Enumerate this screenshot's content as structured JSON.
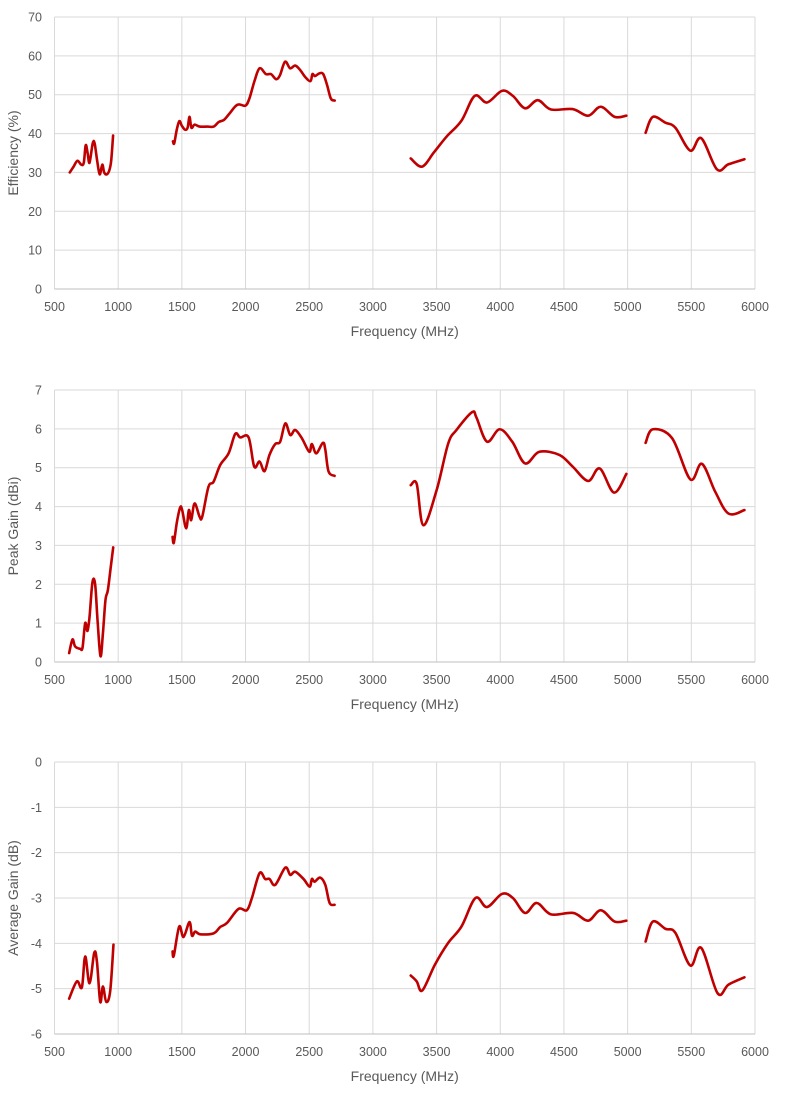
{
  "chart_data": [
    {
      "type": "line",
      "xlabel": "Frequency (MHz)",
      "ylabel": "Efficiency (%)",
      "xlim": [
        500,
        6000
      ],
      "ylim": [
        0,
        70
      ],
      "xticks": [
        500,
        1000,
        1500,
        2000,
        2500,
        3000,
        3500,
        4000,
        4500,
        5000,
        5500,
        6000
      ],
      "yticks": [
        0,
        10,
        20,
        30,
        40,
        50,
        60,
        70
      ],
      "grid": true,
      "color": "#c00000",
      "segments": [
        [
          [
            620,
            30
          ],
          [
            650,
            31.5
          ],
          [
            680,
            33
          ],
          [
            710,
            32
          ],
          [
            730,
            32.5
          ],
          [
            745,
            37
          ],
          [
            760,
            35
          ],
          [
            775,
            32.5
          ],
          [
            800,
            37.5
          ],
          [
            815,
            37.5
          ],
          [
            835,
            33
          ],
          [
            855,
            29.5
          ],
          [
            875,
            32
          ],
          [
            890,
            30
          ],
          [
            910,
            29.5
          ],
          [
            930,
            30.5
          ],
          [
            945,
            33
          ],
          [
            960,
            39.5
          ]
        ],
        [
          [
            1430,
            38
          ],
          [
            1440,
            37.5
          ],
          [
            1460,
            41
          ],
          [
            1480,
            43.2
          ],
          [
            1500,
            42
          ],
          [
            1525,
            41
          ],
          [
            1545,
            41.5
          ],
          [
            1560,
            44.3
          ],
          [
            1575,
            41.5
          ],
          [
            1600,
            42.3
          ],
          [
            1640,
            41.8
          ],
          [
            1700,
            41.8
          ],
          [
            1750,
            41.8
          ],
          [
            1790,
            43
          ],
          [
            1830,
            43.5
          ],
          [
            1870,
            45
          ],
          [
            1920,
            47
          ],
          [
            1950,
            47.5
          ],
          [
            2000,
            47.2
          ],
          [
            2030,
            49
          ],
          [
            2070,
            53.5
          ],
          [
            2110,
            56.8
          ],
          [
            2160,
            55.3
          ],
          [
            2200,
            55.3
          ],
          [
            2240,
            54
          ],
          [
            2270,
            55
          ],
          [
            2310,
            58.5
          ],
          [
            2350,
            56.8
          ],
          [
            2390,
            57.5
          ],
          [
            2430,
            56.3
          ],
          [
            2470,
            54.5
          ],
          [
            2510,
            53.5
          ],
          [
            2525,
            55.3
          ],
          [
            2545,
            54.8
          ],
          [
            2580,
            55.5
          ],
          [
            2610,
            55.3
          ],
          [
            2640,
            52.5
          ],
          [
            2670,
            49
          ],
          [
            2700,
            48.5
          ]
        ],
        [
          [
            3297,
            33.6
          ],
          [
            3386,
            31.5
          ],
          [
            3480,
            35.2
          ],
          [
            3578,
            39.2
          ],
          [
            3695,
            43.3
          ],
          [
            3799,
            49.7
          ],
          [
            3896,
            48
          ],
          [
            4013,
            51
          ],
          [
            4099,
            49.7
          ],
          [
            4195,
            46.5
          ],
          [
            4294,
            48.6
          ],
          [
            4398,
            46.2
          ],
          [
            4568,
            46.3
          ],
          [
            4690,
            44.6
          ],
          [
            4789,
            46.9
          ],
          [
            4898,
            44.3
          ],
          [
            4990,
            44.6
          ]
        ],
        [
          [
            5141,
            40.2
          ],
          [
            5198,
            44.3
          ],
          [
            5297,
            42.8
          ],
          [
            5375,
            41.5
          ],
          [
            5492,
            35.6
          ],
          [
            5578,
            38.8
          ],
          [
            5701,
            30.8
          ],
          [
            5792,
            32.1
          ],
          [
            5917,
            33.4
          ]
        ]
      ]
    },
    {
      "type": "line",
      "xlabel": "Frequency (MHz)",
      "ylabel": "Peak Gain (dBi)",
      "xlim": [
        500,
        6000
      ],
      "ylim": [
        0,
        7
      ],
      "xticks": [
        500,
        1000,
        1500,
        2000,
        2500,
        3000,
        3500,
        4000,
        4500,
        5000,
        5500,
        6000
      ],
      "yticks": [
        0,
        1,
        2,
        3,
        4,
        5,
        6,
        7
      ],
      "grid": true,
      "color": "#c00000",
      "segments": [
        [
          [
            615,
            0.23
          ],
          [
            641,
            0.58
          ],
          [
            662,
            0.4
          ],
          [
            701,
            0.34
          ],
          [
            720,
            0.37
          ],
          [
            741,
            1.0
          ],
          [
            759,
            0.8
          ],
          [
            775,
            1.16
          ],
          [
            798,
            2.05
          ],
          [
            819,
            2.0
          ],
          [
            838,
            1.07
          ],
          [
            861,
            0.15
          ],
          [
            880,
            0.73
          ],
          [
            900,
            1.59
          ],
          [
            919,
            1.85
          ],
          [
            942,
            2.45
          ],
          [
            961,
            2.95
          ]
        ],
        [
          [
            1427,
            3.22
          ],
          [
            1437,
            3.07
          ],
          [
            1461,
            3.6
          ],
          [
            1487,
            3.98
          ],
          [
            1503,
            3.9
          ],
          [
            1534,
            3.44
          ],
          [
            1555,
            3.91
          ],
          [
            1573,
            3.65
          ],
          [
            1600,
            4.08
          ],
          [
            1639,
            3.74
          ],
          [
            1660,
            3.74
          ],
          [
            1709,
            4.51
          ],
          [
            1749,
            4.64
          ],
          [
            1801,
            5.07
          ],
          [
            1867,
            5.37
          ],
          [
            1919,
            5.87
          ],
          [
            1958,
            5.78
          ],
          [
            2024,
            5.78
          ],
          [
            2068,
            5.03
          ],
          [
            2110,
            5.16
          ],
          [
            2149,
            4.91
          ],
          [
            2188,
            5.33
          ],
          [
            2233,
            5.61
          ],
          [
            2272,
            5.67
          ],
          [
            2312,
            6.14
          ],
          [
            2351,
            5.84
          ],
          [
            2390,
            5.97
          ],
          [
            2442,
            5.76
          ],
          [
            2500,
            5.41
          ],
          [
            2521,
            5.61
          ],
          [
            2555,
            5.37
          ],
          [
            2607,
            5.64
          ],
          [
            2626,
            5.47
          ],
          [
            2652,
            4.9
          ],
          [
            2699,
            4.79
          ]
        ],
        [
          [
            3297,
            4.55
          ],
          [
            3344,
            4.58
          ],
          [
            3396,
            3.52
          ],
          [
            3500,
            4.42
          ],
          [
            3591,
            5.62
          ],
          [
            3656,
            5.97
          ],
          [
            3779,
            6.43
          ],
          [
            3813,
            6.29
          ],
          [
            3896,
            5.67
          ],
          [
            3995,
            5.99
          ],
          [
            4094,
            5.67
          ],
          [
            4195,
            5.11
          ],
          [
            4307,
            5.41
          ],
          [
            4464,
            5.33
          ],
          [
            4568,
            5.03
          ],
          [
            4690,
            4.66
          ],
          [
            4781,
            4.98
          ],
          [
            4893,
            4.36
          ],
          [
            4990,
            4.84
          ]
        ],
        [
          [
            5141,
            5.64
          ],
          [
            5198,
            5.99
          ],
          [
            5349,
            5.76
          ],
          [
            5492,
            4.7
          ],
          [
            5583,
            5.1
          ],
          [
            5688,
            4.38
          ],
          [
            5792,
            3.82
          ],
          [
            5917,
            3.91
          ]
        ]
      ]
    },
    {
      "type": "line",
      "xlabel": "Frequency (MHz)",
      "ylabel": "Average Gain (dB)",
      "xlim": [
        500,
        6000
      ],
      "ylim": [
        -6,
        0
      ],
      "xticks": [
        500,
        1000,
        1500,
        2000,
        2500,
        3000,
        3500,
        4000,
        4500,
        5000,
        5500,
        6000
      ],
      "yticks": [
        -6,
        -5,
        -4,
        -3,
        -2,
        -1,
        0
      ],
      "grid": true,
      "color": "#c00000",
      "segments": [
        [
          [
            615,
            -5.22
          ],
          [
            675,
            -4.84
          ],
          [
            715,
            -4.97
          ],
          [
            741,
            -4.29
          ],
          [
            775,
            -4.88
          ],
          [
            812,
            -4.21
          ],
          [
            833,
            -4.4
          ],
          [
            859,
            -5.29
          ],
          [
            880,
            -4.95
          ],
          [
            906,
            -5.29
          ],
          [
            937,
            -5.06
          ],
          [
            963,
            -4.03
          ]
        ],
        [
          [
            1427,
            -4.18
          ],
          [
            1437,
            -4.27
          ],
          [
            1479,
            -3.63
          ],
          [
            1513,
            -3.86
          ],
          [
            1560,
            -3.53
          ],
          [
            1579,
            -3.83
          ],
          [
            1605,
            -3.74
          ],
          [
            1644,
            -3.8
          ],
          [
            1749,
            -3.78
          ],
          [
            1801,
            -3.64
          ],
          [
            1854,
            -3.55
          ],
          [
            1945,
            -3.24
          ],
          [
            2010,
            -3.27
          ],
          [
            2050,
            -3.0
          ],
          [
            2110,
            -2.45
          ],
          [
            2154,
            -2.58
          ],
          [
            2188,
            -2.58
          ],
          [
            2233,
            -2.71
          ],
          [
            2312,
            -2.33
          ],
          [
            2351,
            -2.49
          ],
          [
            2390,
            -2.42
          ],
          [
            2455,
            -2.58
          ],
          [
            2503,
            -2.75
          ],
          [
            2521,
            -2.58
          ],
          [
            2542,
            -2.64
          ],
          [
            2586,
            -2.55
          ],
          [
            2626,
            -2.71
          ],
          [
            2660,
            -3.11
          ],
          [
            2699,
            -3.15
          ]
        ],
        [
          [
            3297,
            -4.71
          ],
          [
            3344,
            -4.84
          ],
          [
            3388,
            -5.04
          ],
          [
            3487,
            -4.47
          ],
          [
            3591,
            -3.99
          ],
          [
            3695,
            -3.63
          ],
          [
            3805,
            -3.0
          ],
          [
            3896,
            -3.2
          ],
          [
            4013,
            -2.91
          ],
          [
            4099,
            -3.0
          ],
          [
            4195,
            -3.33
          ],
          [
            4286,
            -3.11
          ],
          [
            4398,
            -3.36
          ],
          [
            4573,
            -3.33
          ],
          [
            4690,
            -3.5
          ],
          [
            4789,
            -3.27
          ],
          [
            4898,
            -3.52
          ],
          [
            4990,
            -3.5
          ]
        ],
        [
          [
            5141,
            -3.96
          ],
          [
            5198,
            -3.52
          ],
          [
            5297,
            -3.68
          ],
          [
            5375,
            -3.77
          ],
          [
            5492,
            -4.49
          ],
          [
            5578,
            -4.1
          ],
          [
            5706,
            -5.1
          ],
          [
            5792,
            -4.91
          ],
          [
            5917,
            -4.75
          ]
        ]
      ]
    }
  ]
}
